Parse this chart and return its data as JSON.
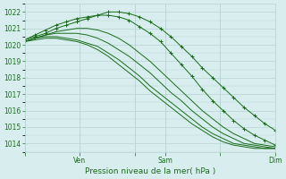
{
  "title": "Pression niveau de la mer( hPa )",
  "bg_color": "#d8eeee",
  "grid_color": "#b8d4d4",
  "line_color": "#1a6b1a",
  "ylim": [
    1013.5,
    1022.5
  ],
  "yticks": [
    1014,
    1015,
    1016,
    1017,
    1018,
    1019,
    1020,
    1021,
    1022
  ],
  "day_labels": [
    "",
    "Ven",
    "",
    "Sam",
    "",
    "Dim"
  ],
  "day_positions": [
    0.0,
    0.22,
    0.44,
    0.56,
    0.78,
    1.0
  ],
  "series": [
    [
      1020.2,
      1020.3,
      1020.4,
      1020.4,
      1020.3,
      1020.2,
      1020.0,
      1019.7,
      1019.3,
      1018.8,
      1018.3,
      1017.8,
      1017.2,
      1016.7,
      1016.2,
      1015.7,
      1015.2,
      1014.8,
      1014.4,
      1014.1,
      1013.9,
      1013.8,
      1013.7,
      1013.7,
      1013.7
    ],
    [
      1020.2,
      1020.4,
      1020.5,
      1020.5,
      1020.4,
      1020.3,
      1020.1,
      1019.9,
      1019.5,
      1019.1,
      1018.6,
      1018.1,
      1017.5,
      1017.0,
      1016.5,
      1016.0,
      1015.5,
      1015.0,
      1014.6,
      1014.3,
      1014.0,
      1013.9,
      1013.8,
      1013.7,
      1013.7
    ],
    [
      1020.2,
      1020.4,
      1020.6,
      1020.7,
      1020.7,
      1020.7,
      1020.6,
      1020.4,
      1020.1,
      1019.7,
      1019.3,
      1018.8,
      1018.3,
      1017.7,
      1017.1,
      1016.6,
      1016.0,
      1015.5,
      1015.0,
      1014.6,
      1014.3,
      1014.0,
      1013.9,
      1013.8,
      1013.7
    ],
    [
      1020.2,
      1020.4,
      1020.6,
      1020.8,
      1020.9,
      1021.0,
      1021.0,
      1020.9,
      1020.7,
      1020.4,
      1020.0,
      1019.5,
      1019.0,
      1018.4,
      1017.8,
      1017.2,
      1016.6,
      1016.0,
      1015.5,
      1015.0,
      1014.6,
      1014.3,
      1014.0,
      1013.9,
      1013.8
    ],
    [
      1020.3,
      1020.5,
      1020.7,
      1021.0,
      1021.2,
      1021.4,
      1021.6,
      1021.8,
      1022.0,
      1022.0,
      1021.9,
      1021.7,
      1021.4,
      1021.0,
      1020.5,
      1019.9,
      1019.3,
      1018.6,
      1018.0,
      1017.4,
      1016.8,
      1016.2,
      1015.7,
      1015.2,
      1014.8
    ],
    [
      1020.3,
      1020.6,
      1020.9,
      1021.2,
      1021.4,
      1021.6,
      1021.7,
      1021.8,
      1021.8,
      1021.7,
      1021.5,
      1021.1,
      1020.7,
      1020.2,
      1019.5,
      1018.8,
      1018.1,
      1017.3,
      1016.6,
      1016.0,
      1015.4,
      1014.9,
      1014.5,
      1014.2,
      1013.9
    ]
  ],
  "marker_series": [
    4,
    5
  ],
  "n_points": 25
}
